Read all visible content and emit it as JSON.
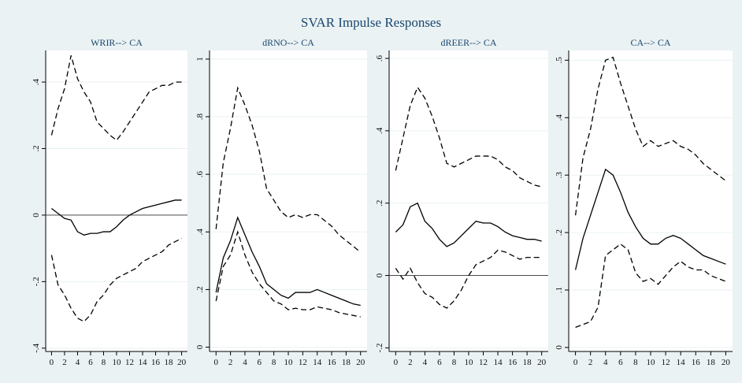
{
  "title": "SVAR Impulse Responses",
  "chart_data": [
    {
      "type": "line",
      "title": "WRIR--> CA",
      "x": [
        0,
        1,
        2,
        3,
        4,
        5,
        6,
        7,
        8,
        9,
        10,
        11,
        12,
        13,
        14,
        15,
        16,
        17,
        18,
        19,
        20
      ],
      "xlim": [
        -0.9,
        20.9
      ],
      "xticks": [
        0,
        2,
        4,
        6,
        8,
        10,
        12,
        14,
        16,
        18,
        20
      ],
      "ylim": [
        -0.41,
        0.495
      ],
      "yticks": [
        {
          "value": -0.4,
          "label": "-.4"
        },
        {
          "value": -0.2,
          "label": "-.2"
        },
        0,
        {
          "value": 0.2,
          "label": ".2"
        },
        {
          "value": 0.4,
          "label": ".4"
        }
      ],
      "grid": true,
      "refline": 0,
      "series": [
        {
          "color": "#000000",
          "dashed": true,
          "values": [
            0.24,
            0.32,
            0.38,
            0.48,
            0.41,
            0.37,
            0.34,
            0.28,
            0.26,
            0.24,
            0.225,
            0.25,
            0.28,
            0.31,
            0.34,
            0.37,
            0.38,
            0.39,
            0.39,
            0.4,
            0.4
          ]
        },
        {
          "color": "#000000",
          "dashed": false,
          "values": [
            0.02,
            0.005,
            -0.01,
            -0.015,
            -0.05,
            -0.06,
            -0.055,
            -0.055,
            -0.05,
            -0.05,
            -0.035,
            -0.015,
            0,
            0.01,
            0.02,
            0.025,
            0.03,
            0.035,
            0.04,
            0.045,
            0.045
          ]
        },
        {
          "color": "#000000",
          "dashed": true,
          "values": [
            -0.12,
            -0.21,
            -0.24,
            -0.28,
            -0.31,
            -0.32,
            -0.3,
            -0.26,
            -0.24,
            -0.21,
            -0.19,
            -0.18,
            -0.17,
            -0.16,
            -0.14,
            -0.13,
            -0.12,
            -0.11,
            -0.09,
            -0.08,
            -0.07
          ]
        }
      ]
    },
    {
      "type": "line",
      "title": "dRNO--> CA",
      "x": [
        0,
        1,
        2,
        3,
        4,
        5,
        6,
        7,
        8,
        9,
        10,
        11,
        12,
        13,
        14,
        15,
        16,
        17,
        18,
        19,
        20
      ],
      "xlim": [
        -0.9,
        20.9
      ],
      "xticks": [
        0,
        2,
        4,
        6,
        8,
        10,
        12,
        14,
        16,
        18,
        20
      ],
      "ylim": [
        -0.015,
        1.03
      ],
      "yticks": [
        0,
        {
          "value": 0.2,
          "label": ".2"
        },
        {
          "value": 0.4,
          "label": ".4"
        },
        {
          "value": 0.6,
          "label": ".6"
        },
        {
          "value": 0.8,
          "label": ".8"
        },
        1
      ],
      "grid": true,
      "series": [
        {
          "color": "#000000",
          "dashed": true,
          "values": [
            0.41,
            0.64,
            0.76,
            0.9,
            0.84,
            0.77,
            0.68,
            0.55,
            0.51,
            0.47,
            0.45,
            0.46,
            0.45,
            0.46,
            0.46,
            0.44,
            0.42,
            0.39,
            0.37,
            0.35,
            0.33
          ]
        },
        {
          "color": "#000000",
          "dashed": false,
          "values": [
            0.19,
            0.31,
            0.37,
            0.45,
            0.39,
            0.33,
            0.28,
            0.22,
            0.2,
            0.18,
            0.17,
            0.19,
            0.19,
            0.19,
            0.2,
            0.19,
            0.18,
            0.17,
            0.16,
            0.15,
            0.145
          ]
        },
        {
          "color": "#000000",
          "dashed": true,
          "values": [
            0.16,
            0.28,
            0.32,
            0.4,
            0.32,
            0.26,
            0.22,
            0.19,
            0.16,
            0.15,
            0.13,
            0.135,
            0.13,
            0.13,
            0.14,
            0.135,
            0.13,
            0.12,
            0.115,
            0.11,
            0.105
          ]
        }
      ]
    },
    {
      "type": "line",
      "title": "dREER--> CA",
      "x": [
        0,
        1,
        2,
        3,
        4,
        5,
        6,
        7,
        8,
        9,
        10,
        11,
        12,
        13,
        14,
        15,
        16,
        17,
        18,
        19,
        20
      ],
      "xlim": [
        -0.9,
        20.9
      ],
      "xticks": [
        0,
        2,
        4,
        6,
        8,
        10,
        12,
        14,
        16,
        18,
        20
      ],
      "ylim": [
        -0.21,
        0.622
      ],
      "yticks": [
        {
          "value": -0.2,
          "label": "-.2"
        },
        0,
        {
          "value": 0.2,
          "label": ".2"
        },
        {
          "value": 0.4,
          "label": ".4"
        },
        {
          "value": 0.6,
          "label": ".6"
        }
      ],
      "grid": true,
      "refline": 0,
      "series": [
        {
          "color": "#000000",
          "dashed": true,
          "values": [
            0.29,
            0.38,
            0.47,
            0.52,
            0.49,
            0.44,
            0.38,
            0.31,
            0.3,
            0.31,
            0.32,
            0.33,
            0.33,
            0.33,
            0.32,
            0.3,
            0.29,
            0.27,
            0.26,
            0.25,
            0.245
          ]
        },
        {
          "color": "#000000",
          "dashed": false,
          "values": [
            0.12,
            0.14,
            0.19,
            0.2,
            0.15,
            0.13,
            0.1,
            0.08,
            0.09,
            0.11,
            0.13,
            0.15,
            0.145,
            0.145,
            0.135,
            0.12,
            0.11,
            0.105,
            0.1,
            0.1,
            0.095
          ]
        },
        {
          "color": "#000000",
          "dashed": true,
          "values": [
            0.02,
            -0.01,
            0.02,
            -0.02,
            -0.05,
            -0.06,
            -0.08,
            -0.09,
            -0.07,
            -0.04,
            0,
            0.03,
            0.04,
            0.05,
            0.07,
            0.065,
            0.055,
            0.045,
            0.05,
            0.05,
            0.05
          ]
        }
      ]
    },
    {
      "type": "line",
      "title": "CA--> CA",
      "x": [
        0,
        1,
        2,
        3,
        4,
        5,
        6,
        7,
        8,
        9,
        10,
        11,
        12,
        13,
        14,
        15,
        16,
        17,
        18,
        19,
        20
      ],
      "xlim": [
        -0.9,
        20.9
      ],
      "xticks": [
        0,
        2,
        4,
        6,
        8,
        10,
        12,
        14,
        16,
        18,
        20
      ],
      "ylim": [
        -0.007,
        0.517
      ],
      "yticks": [
        0,
        {
          "value": 0.1,
          "label": ".1"
        },
        {
          "value": 0.2,
          "label": ".2"
        },
        {
          "value": 0.3,
          "label": ".3"
        },
        {
          "value": 0.4,
          "label": ".4"
        },
        {
          "value": 0.5,
          "label": ".5"
        }
      ],
      "grid": true,
      "series": [
        {
          "color": "#000000",
          "dashed": true,
          "values": [
            0.23,
            0.33,
            0.38,
            0.45,
            0.5,
            0.505,
            0.46,
            0.42,
            0.38,
            0.35,
            0.36,
            0.35,
            0.355,
            0.36,
            0.35,
            0.345,
            0.335,
            0.32,
            0.31,
            0.3,
            0.29
          ]
        },
        {
          "color": "#000000",
          "dashed": false,
          "values": [
            0.135,
            0.19,
            0.23,
            0.27,
            0.31,
            0.3,
            0.27,
            0.235,
            0.21,
            0.19,
            0.18,
            0.18,
            0.19,
            0.195,
            0.19,
            0.18,
            0.17,
            0.16,
            0.155,
            0.15,
            0.145
          ]
        },
        {
          "color": "#000000",
          "dashed": true,
          "values": [
            0.035,
            0.04,
            0.045,
            0.07,
            0.16,
            0.17,
            0.18,
            0.17,
            0.13,
            0.115,
            0.12,
            0.11,
            0.125,
            0.14,
            0.15,
            0.14,
            0.135,
            0.135,
            0.125,
            0.12,
            0.115
          ]
        }
      ]
    }
  ]
}
